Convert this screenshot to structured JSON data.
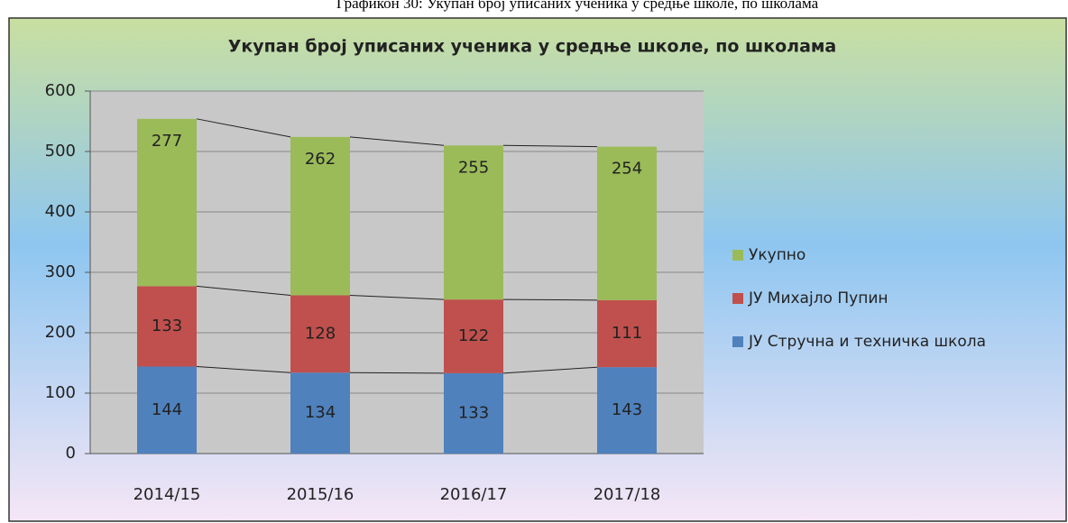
{
  "chart_data": {
    "type": "stacked_bar",
    "caption": "Графикон 30: Укупан број уписаних ученика у средње школе, по школама",
    "title": "Укупан број уписаних ученика у средње школе, по школама",
    "categories": [
      "2014/15",
      "2015/16",
      "2016/17",
      "2017/18"
    ],
    "series": [
      {
        "name": "ЈУ Стручна и техничка школа",
        "color": "#4f81bd",
        "values": [
          144,
          134,
          133,
          143
        ]
      },
      {
        "name": "ЈУ Михајло Пупин",
        "color": "#c0504d",
        "values": [
          133,
          128,
          122,
          111
        ]
      },
      {
        "name": "Укупно",
        "color": "#9bbb59",
        "values": [
          277,
          262,
          255,
          254
        ]
      }
    ],
    "ylim": [
      0,
      600
    ],
    "yticks": [
      0,
      100,
      200,
      300,
      400,
      500,
      600
    ],
    "grid": true,
    "legend": "right"
  }
}
